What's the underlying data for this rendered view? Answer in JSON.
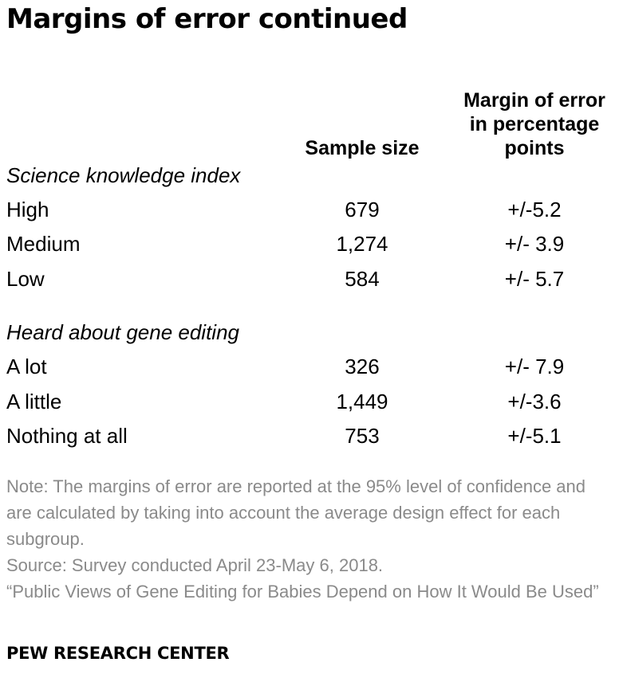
{
  "title": "Margins of error continued",
  "columns": {
    "sample_size": "Sample size",
    "margin_line1": "Margin of error",
    "margin_line2": "in percentage",
    "margin_line3": "points"
  },
  "sections": [
    {
      "heading": "Science knowledge index",
      "rows": [
        {
          "label": "High",
          "sample_size": "679",
          "margin": "+/-5.2"
        },
        {
          "label": "Medium",
          "sample_size": "1,274",
          "margin": "+/- 3.9"
        },
        {
          "label": "Low",
          "sample_size": "584",
          "margin": "+/- 5.7"
        }
      ]
    },
    {
      "heading": "Heard about gene editing",
      "rows": [
        {
          "label": "A lot",
          "sample_size": "326",
          "margin": "+/- 7.9"
        },
        {
          "label": "A little",
          "sample_size": "1,449",
          "margin": "+/-3.6"
        },
        {
          "label": "Nothing at all",
          "sample_size": "753",
          "margin": "+/-5.1"
        }
      ]
    }
  ],
  "notes": {
    "note": "Note: The margins of error are reported at the 95% level of confidence and are calculated by taking into account the average design effect for each subgroup.",
    "source": "Source: Survey conducted April 23-May 6, 2018.",
    "report": "“Public Views of Gene Editing for Babies Depend on How It Would Be Used”"
  },
  "logo": "PEW RESEARCH CENTER"
}
